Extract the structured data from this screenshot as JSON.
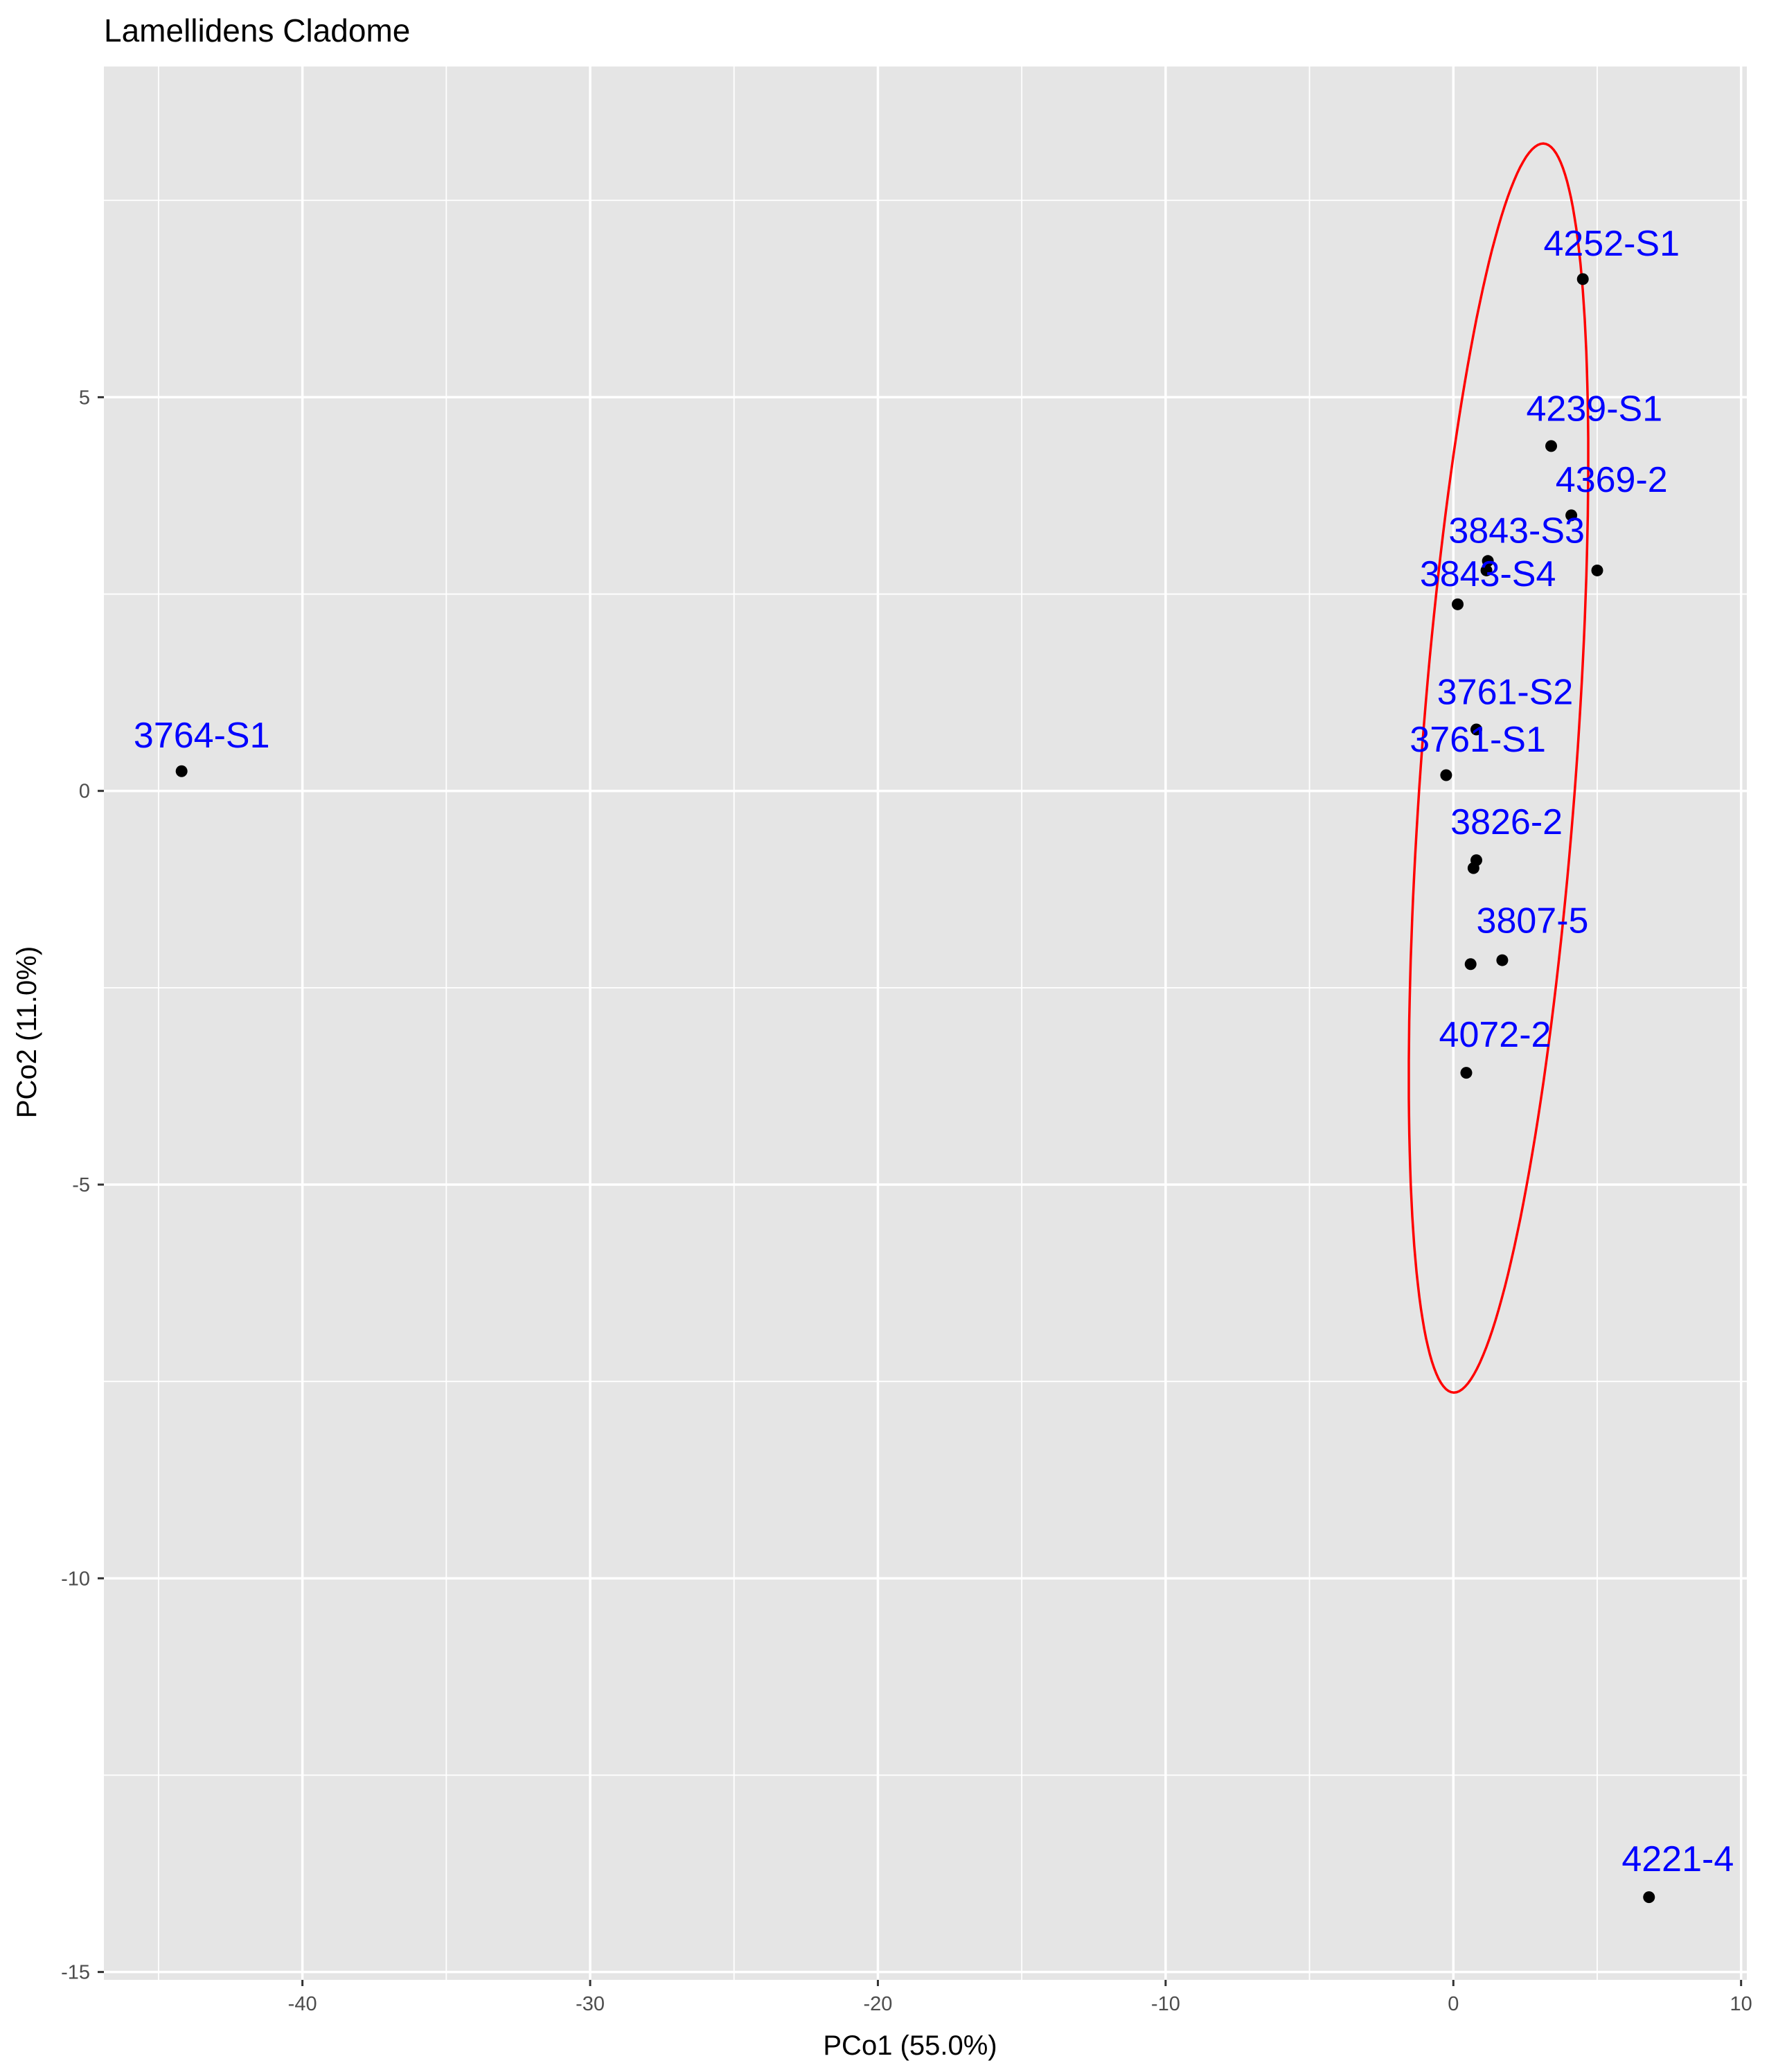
{
  "chart_data": {
    "type": "scatter",
    "title": "Lamellidens Cladome",
    "xlabel": "PCo1 (55.0%)",
    "ylabel": "PCo2 (11.0%)",
    "xlim": [
      -46.9,
      10.2
    ],
    "ylim": [
      -15.1,
      9.2
    ],
    "x_ticks": [
      -40,
      -30,
      -20,
      -10,
      0,
      10
    ],
    "x_tick_labels": [
      "-40",
      "-30",
      "-20",
      "-10",
      "0",
      "10"
    ],
    "y_ticks": [
      -15,
      -10,
      -5,
      0,
      5
    ],
    "y_tick_labels": [
      "-15",
      "-10",
      "-5",
      "0",
      "5"
    ],
    "grid": true,
    "panel_color": "#e5e5e5",
    "point_color": "#000000",
    "label_color": "#0000ff",
    "ellipse_color": "#ff0000",
    "points": [
      {
        "x": -44.2,
        "y": 0.25
      },
      {
        "x": 4.5,
        "y": 6.5
      },
      {
        "x": 3.4,
        "y": 4.38
      },
      {
        "x": 4.1,
        "y": 3.5
      },
      {
        "x": 5.0,
        "y": 2.8
      },
      {
        "x": 1.2,
        "y": 2.92
      },
      {
        "x": 1.15,
        "y": 2.8
      },
      {
        "x": 0.15,
        "y": 2.37
      },
      {
        "x": 0.8,
        "y": 0.78
      },
      {
        "x": -0.25,
        "y": 0.2
      },
      {
        "x": 0.8,
        "y": -0.88
      },
      {
        "x": 0.7,
        "y": -0.98
      },
      {
        "x": 1.7,
        "y": -2.15
      },
      {
        "x": 0.6,
        "y": -2.2
      },
      {
        "x": 0.45,
        "y": -3.58
      },
      {
        "x": 6.8,
        "y": -14.05
      }
    ],
    "labels": [
      {
        "text": "3764-S1",
        "x": -43.5,
        "y": 0.55
      },
      {
        "text": "4252-S1",
        "x": 5.5,
        "y": 6.8
      },
      {
        "text": "4239-S1",
        "x": 4.9,
        "y": 4.7
      },
      {
        "text": "4369-2",
        "x": 5.5,
        "y": 3.8
      },
      {
        "text": "3843-S3",
        "x": 2.2,
        "y": 3.15
      },
      {
        "text": "3843-S4",
        "x": 1.2,
        "y": 2.6
      },
      {
        "text": "3761-S2",
        "x": 1.8,
        "y": 1.1
      },
      {
        "text": "3761-S1",
        "x": 0.85,
        "y": 0.5
      },
      {
        "text": "3826-2",
        "x": 1.85,
        "y": -0.55
      },
      {
        "text": "3807-5",
        "x": 2.75,
        "y": -1.8
      },
      {
        "text": "4072-2",
        "x": 1.45,
        "y": -3.25
      },
      {
        "text": "4221-4",
        "x": 7.8,
        "y": -13.72
      }
    ],
    "ellipse": {
      "center": [
        1.57,
        0.29
      ],
      "semi_major": 8.1,
      "semi_minor": 2.65,
      "angle_deg": 77.6
    }
  }
}
